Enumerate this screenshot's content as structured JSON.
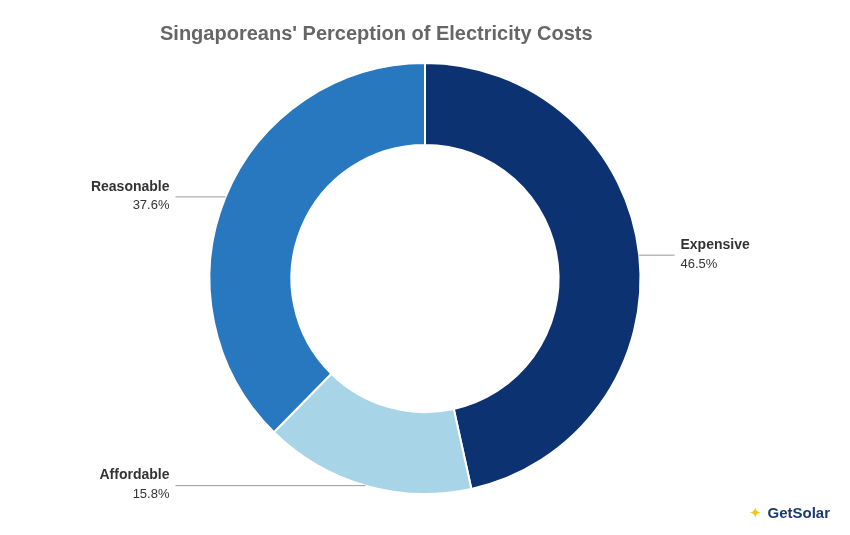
{
  "chart_data": {
    "type": "doughnut",
    "title": "Singaporeans' Perception of Electricity Costs",
    "categories": [
      "Expensive",
      "Affordable",
      "Reasonable"
    ],
    "values": [
      46.5,
      15.8,
      37.6
    ],
    "value_labels": [
      "46.5%",
      "15.8%",
      "37.6%"
    ],
    "data_labels": true,
    "colors": [
      "#0d3272",
      "#a8d4e8",
      "#2878c0"
    ],
    "legend": false,
    "annotations": [
      {
        "text": "✦",
        "color": "#f5c518"
      },
      {
        "text": "GetSolar",
        "color": "#1a3a6b"
      }
    ]
  }
}
